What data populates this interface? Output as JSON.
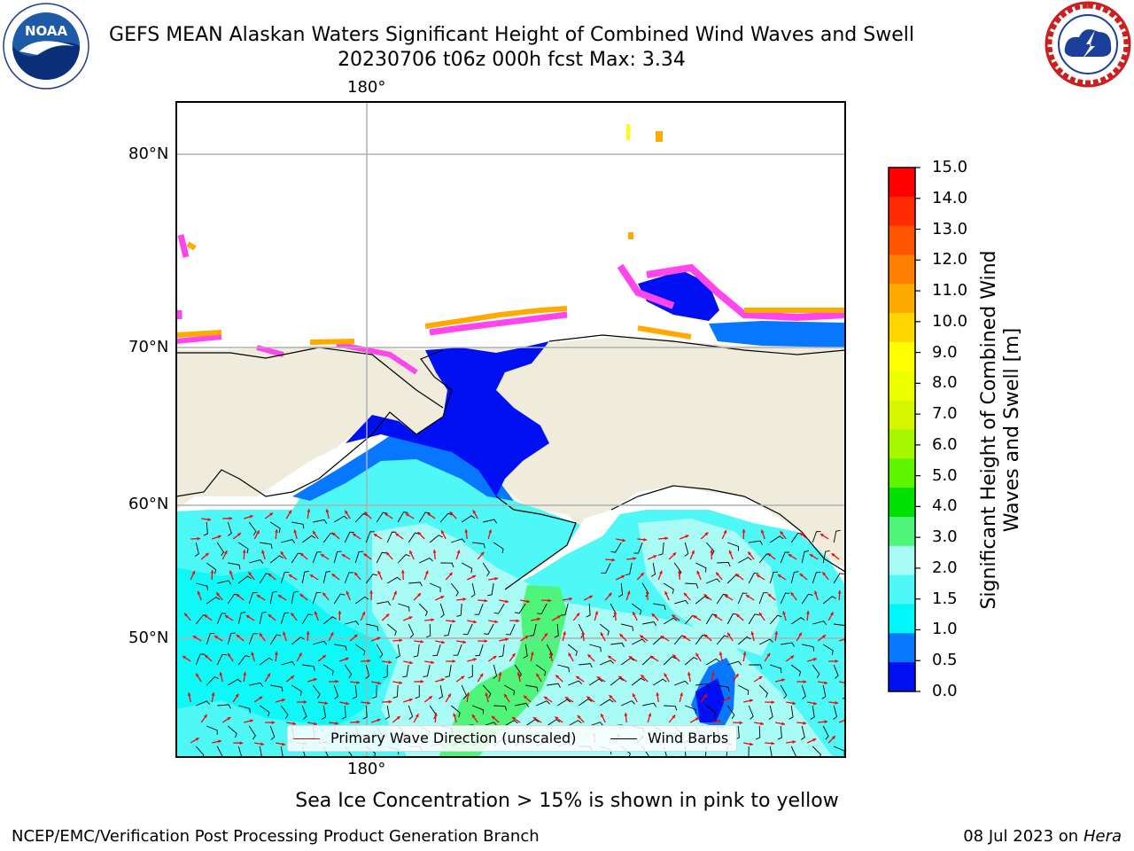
{
  "header": {
    "title_line1": "GEFS MEAN Alaskan Waters Significant Height of Combined Wind Waves and Swell",
    "title_line2": "20230706 t06z 000h fcst   Max: 3.34"
  },
  "logos": {
    "left_text": "NOAA",
    "right_text": "NATIONAL WEATHER SERVICE"
  },
  "map": {
    "top_lon_label": "180°",
    "bottom_lon_label": "180°",
    "lat_labels": [
      "80°N",
      "70°N",
      "60°N",
      "50°N"
    ],
    "land_color": "#efecdc",
    "ocean_colors": {
      "lt_cyan": "#a9fbf5",
      "cyan": "#4ef8f6",
      "aqua": "#00f7f9",
      "blue": "#0777ff",
      "deep": "#0010f2",
      "green": "#4ff57b"
    }
  },
  "legend": {
    "wave_label": "Primary Wave Direction (unscaled)",
    "wave_color": "#ff0000",
    "wind_label": "Wind Barbs",
    "wind_color": "#000000"
  },
  "colorbar": {
    "title": "Significant Height of Combined Wind Waves and Swell [m]",
    "ticks": [
      "15.0",
      "14.0",
      "13.0",
      "12.0",
      "11.0",
      "10.0",
      "9.0",
      "8.0",
      "7.0",
      "6.0",
      "5.0",
      "4.0",
      "3.0",
      "2.0",
      "1.5",
      "1.0",
      "0.5",
      "0.0"
    ],
    "colors": [
      "#ff0000",
      "#ff2a00",
      "#ff5500",
      "#ff8000",
      "#ffaa00",
      "#ffd500",
      "#ffff00",
      "#eeff00",
      "#d4f700",
      "#a6f600",
      "#5ef500",
      "#00e000",
      "#4ff57b",
      "#a9fbf5",
      "#4ef8f6",
      "#00f7f9",
      "#0777ff",
      "#0010f2"
    ]
  },
  "footer": {
    "ice_note": "Sea Ice Concentration > 15% is shown in pink to yellow",
    "left": "NCEP/EMC/Verification Post Processing Product Generation Branch",
    "right_prefix": "08 Jul 2023 on ",
    "right_host": "Hera"
  }
}
